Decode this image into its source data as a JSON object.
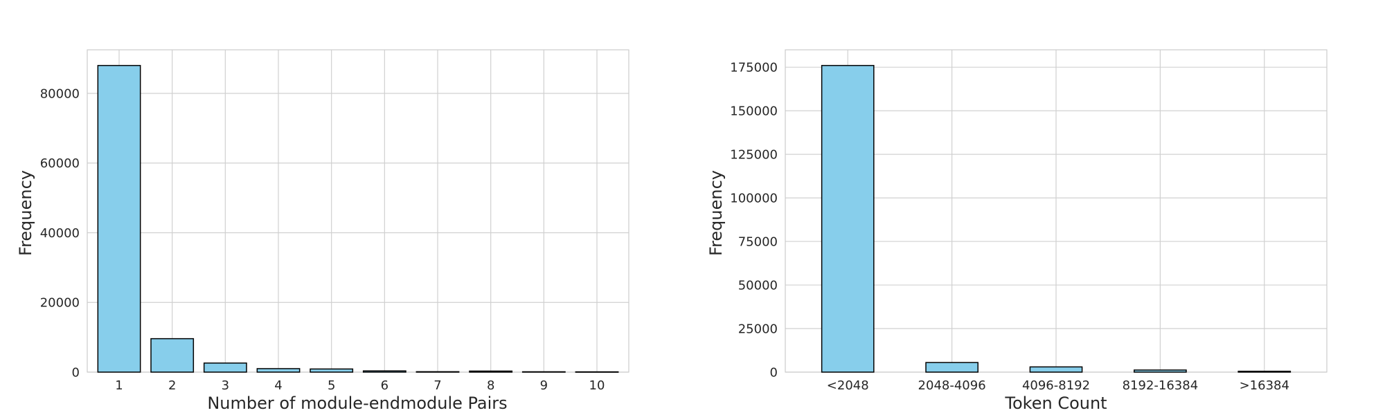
{
  "chart_data": [
    {
      "type": "bar",
      "categories": [
        "1",
        "2",
        "3",
        "4",
        "5",
        "6",
        "7",
        "8",
        "9",
        "10"
      ],
      "values": [
        88000,
        9600,
        2600,
        1000,
        900,
        350,
        120,
        300,
        100,
        80
      ],
      "xlabel": "Number of module-endmodule Pairs",
      "ylabel": "Frequency",
      "ylim": [
        0,
        92500
      ],
      "yticks": [
        0,
        20000,
        40000,
        60000,
        80000
      ],
      "grid": true,
      "bar_color": "#87CEEB",
      "edge_color": "#000000"
    },
    {
      "type": "bar",
      "categories": [
        "<2048",
        "2048-4096",
        "4096-8192",
        "8192-16384",
        ">16384"
      ],
      "values": [
        176000,
        5500,
        3000,
        1200,
        500
      ],
      "xlabel": "Token Count",
      "ylabel": "Frequency",
      "ylim": [
        0,
        185000
      ],
      "yticks": [
        0,
        25000,
        50000,
        75000,
        100000,
        125000,
        150000,
        175000
      ],
      "grid": true,
      "bar_color": "#87CEEB",
      "edge_color": "#000000"
    }
  ]
}
